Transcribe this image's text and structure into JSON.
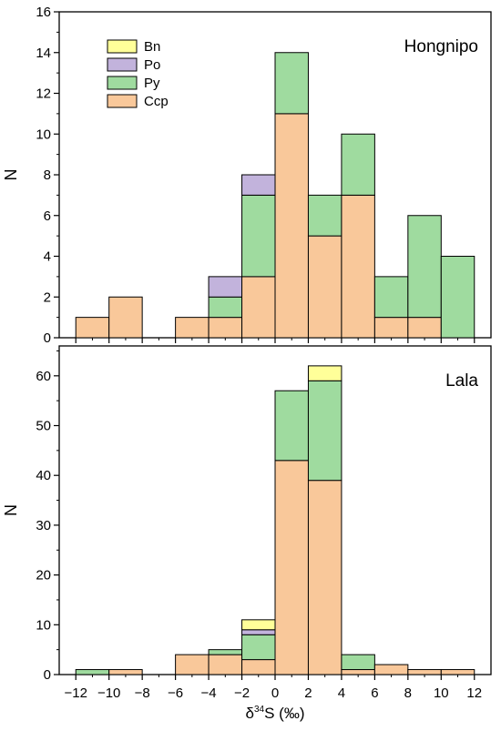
{
  "chart_data": [
    {
      "type": "bar",
      "stacked": true,
      "panel_label": "Hongnipo",
      "ylabel": "N",
      "xlabel": "",
      "bin_edges": [
        -12,
        -10,
        -8,
        -6,
        -4,
        -2,
        0,
        2,
        4,
        6,
        8,
        10,
        12
      ],
      "xlim": [
        -13,
        13
      ],
      "ylim": [
        0,
        16
      ],
      "yticks": [
        0,
        2,
        4,
        6,
        8,
        10,
        12,
        14,
        16
      ],
      "legend_position": "top-left",
      "series": [
        {
          "name": "Ccp",
          "color": "#f9c89a",
          "values": [
            1,
            2,
            0,
            1,
            1,
            3,
            11,
            5,
            7,
            1,
            1,
            0
          ]
        },
        {
          "name": "Py",
          "color": "#9fdb9f",
          "values": [
            0,
            0,
            0,
            0,
            1,
            4,
            3,
            2,
            3,
            2,
            5,
            4
          ]
        },
        {
          "name": "Po",
          "color": "#c2b3dc",
          "values": [
            0,
            0,
            0,
            0,
            1,
            1,
            0,
            0,
            0,
            0,
            0,
            0
          ]
        },
        {
          "name": "Bn",
          "color": "#ffff99",
          "values": [
            0,
            0,
            0,
            0,
            0,
            0,
            0,
            0,
            0,
            0,
            0,
            0
          ]
        }
      ]
    },
    {
      "type": "bar",
      "stacked": true,
      "panel_label": "Lala",
      "ylabel": "N",
      "xlabel": "δ34S (‰)",
      "bin_edges": [
        -12,
        -10,
        -8,
        -6,
        -4,
        -2,
        0,
        2,
        4,
        6,
        8,
        10,
        12
      ],
      "xlim": [
        -13,
        13
      ],
      "ylim": [
        0,
        66
      ],
      "yticks": [
        0,
        10,
        20,
        30,
        40,
        50,
        60
      ],
      "xticks": [
        -12,
        -10,
        -8,
        -6,
        -4,
        -2,
        0,
        2,
        4,
        6,
        8,
        10,
        12
      ],
      "xtick_labels": [
        "−12",
        "−10",
        "−8",
        "−6",
        "−4",
        "−2",
        "0",
        "2",
        "4",
        "6",
        "8",
        "10",
        "12"
      ],
      "series": [
        {
          "name": "Ccp",
          "color": "#f9c89a",
          "values": [
            0,
            1,
            0,
            4,
            4,
            3,
            43,
            39,
            1,
            2,
            1,
            1
          ]
        },
        {
          "name": "Py",
          "color": "#9fdb9f",
          "values": [
            1,
            0,
            0,
            0,
            1,
            5,
            14,
            20,
            3,
            0,
            0,
            0
          ]
        },
        {
          "name": "Po",
          "color": "#c2b3dc",
          "values": [
            0,
            0,
            0,
            0,
            0,
            1,
            0,
            0,
            0,
            0,
            0,
            0
          ]
        },
        {
          "name": "Bn",
          "color": "#ffff99",
          "values": [
            0,
            0,
            0,
            0,
            0,
            2,
            0,
            3,
            0,
            0,
            0,
            0
          ]
        }
      ]
    }
  ],
  "legend": {
    "order": [
      "Bn",
      "Po",
      "Py",
      "Ccp"
    ]
  },
  "axis_label": {
    "delta": "δ",
    "superscript": "34",
    "rest": "S (‰)"
  }
}
